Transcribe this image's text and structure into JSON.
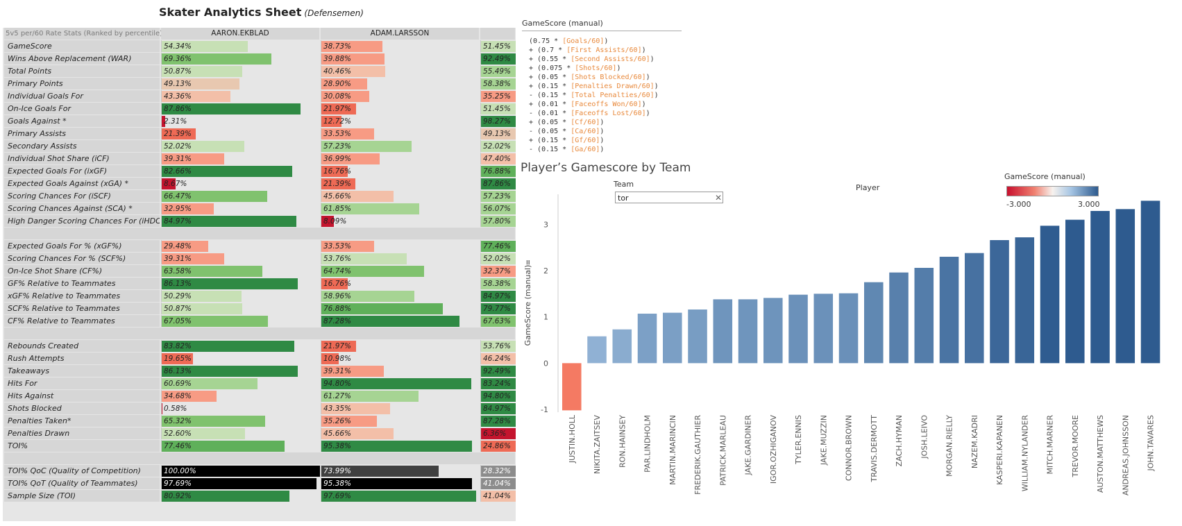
{
  "sheet": {
    "title": "Skater Analytics Sheet",
    "subtitle": "(Defensemen)"
  },
  "table": {
    "header_rate": "5v5 per/60 Rate Stats (Ranked by percentile)",
    "players": [
      "AARON.EKBLAD",
      "ADAM.LARSSON",
      ""
    ],
    "groups": [
      [
        {
          "label": "GameScore",
          "v": [
            "54.34%",
            "38.73%",
            "51.45%"
          ]
        },
        {
          "label": "Wins Above Replacement (WAR)",
          "v": [
            "69.36%",
            "39.88%",
            "92.49%"
          ]
        },
        {
          "label": "Total Points",
          "v": [
            "50.87%",
            "40.46%",
            "55.49%"
          ]
        },
        {
          "label": "Primary Points",
          "v": [
            "49.13%",
            "28.90%",
            "58.38%"
          ]
        },
        {
          "label": "Individual Goals For",
          "v": [
            "43.36%",
            "30.08%",
            "35.25%"
          ]
        },
        {
          "label": "On-Ice Goals For",
          "v": [
            "87.86%",
            "21.97%",
            "51.45%"
          ]
        },
        {
          "label": "Goals Against *",
          "v": [
            "2.31%",
            "12.72%",
            "98.27%"
          ]
        },
        {
          "label": "Primary Assists",
          "v": [
            "21.39%",
            "33.53%",
            "49.13%"
          ]
        },
        {
          "label": "Secondary Assists",
          "v": [
            "52.02%",
            "57.23%",
            "52.02%"
          ]
        },
        {
          "label": "Individual Shot Share (iCF)",
          "v": [
            "39.31%",
            "36.99%",
            "47.40%"
          ]
        },
        {
          "label": "Expected Goals For (ixGF)",
          "v": [
            "82.66%",
            "16.76%",
            "76.88%"
          ]
        },
        {
          "label": "Expected Goals Against (xGA) *",
          "v": [
            "8.67%",
            "21.39%",
            "87.86%"
          ]
        },
        {
          "label": "Scoring Chances For (iSCF)",
          "v": [
            "66.47%",
            "45.66%",
            "57.23%"
          ]
        },
        {
          "label": "Scoring Chances Against (SCA) *",
          "v": [
            "32.95%",
            "61.85%",
            "56.07%"
          ]
        },
        {
          "label": "High Danger Scoring Chances For (iHDCF)",
          "v": [
            "84.97%",
            "8.09%",
            "57.80%"
          ]
        }
      ],
      [
        {
          "label": "Expected Goals For % (xGF%)",
          "v": [
            "29.48%",
            "33.53%",
            "77.46%"
          ]
        },
        {
          "label": "Scoring Chances For % (SCF%)",
          "v": [
            "39.31%",
            "53.76%",
            "52.02%"
          ]
        },
        {
          "label": "On-Ice Shot Share (CF%)",
          "v": [
            "63.58%",
            "64.74%",
            "32.37%"
          ]
        },
        {
          "label": "GF% Relative to Teammates",
          "v": [
            "86.13%",
            "16.76%",
            "58.38%"
          ]
        },
        {
          "label": "xGF% Relative to Teammates",
          "v": [
            "50.29%",
            "58.96%",
            "84.97%"
          ]
        },
        {
          "label": "SCF% Relative to Teammates",
          "v": [
            "50.87%",
            "76.88%",
            "79.77%"
          ]
        },
        {
          "label": "CF% Relative to Teammates",
          "v": [
            "67.05%",
            "87.28%",
            "67.63%"
          ]
        }
      ],
      [
        {
          "label": "Rebounds Created",
          "v": [
            "83.82%",
            "21.97%",
            "53.76%"
          ]
        },
        {
          "label": "Rush Attempts",
          "v": [
            "19.65%",
            "10.98%",
            "46.24%"
          ]
        },
        {
          "label": "Takeaways",
          "v": [
            "86.13%",
            "39.31%",
            "92.49%"
          ]
        },
        {
          "label": "Hits For",
          "v": [
            "60.69%",
            "94.80%",
            "83.24%"
          ]
        },
        {
          "label": "Hits Against",
          "v": [
            "34.68%",
            "61.27%",
            "94.80%"
          ]
        },
        {
          "label": "Shots Blocked",
          "v": [
            "0.58%",
            "43.35%",
            "84.97%"
          ]
        },
        {
          "label": "Penalties Taken*",
          "v": [
            "65.32%",
            "35.26%",
            "87.28%"
          ]
        },
        {
          "label": "Penalties Drawn",
          "v": [
            "52.60%",
            "45.66%",
            "6.36%"
          ]
        },
        {
          "label": "TOI%",
          "v": [
            "77.46%",
            "95.38%",
            "24.86%"
          ]
        }
      ],
      [
        {
          "label": "TOI% QoC (Quality of Competition)",
          "v": [
            "100.00%",
            "73.99%",
            "28.32%"
          ],
          "dark": true
        },
        {
          "label": "TOI% QoT (Quality of Teammates)",
          "v": [
            "97.69%",
            "95.38%",
            "41.04%"
          ],
          "dark": true
        },
        {
          "label": "Sample Size (TOI)",
          "v": [
            "80.92%",
            "97.69%",
            "41.04%"
          ]
        }
      ]
    ]
  },
  "calc": {
    "header": "GameScore (manual)",
    "lines": [
      {
        "prefix": " (0.75 * ",
        "field": "[Goals/60]",
        "suffix": ")"
      },
      {
        "prefix": " + (0.7 * ",
        "field": "[First Assists/60]",
        "suffix": ")"
      },
      {
        "prefix": " + (0.55 * ",
        "field": "[Second Assists/60]",
        "suffix": ")"
      },
      {
        "prefix": " + (0.075 * ",
        "field": "[Shots/60]",
        "suffix": ")"
      },
      {
        "prefix": " + (0.05 * ",
        "field": "[Shots Blocked/60]",
        "suffix": ")"
      },
      {
        "prefix": " + (0.15 * ",
        "field": "[Penalties Drawn/60]",
        "suffix": ")"
      },
      {
        "prefix": " - (0.15 * ",
        "field": "[Total Penalties/60]",
        "suffix": ")"
      },
      {
        "prefix": " + (0.01 * ",
        "field": "[Faceoffs Won/60]",
        "suffix": ")"
      },
      {
        "prefix": " - (0.01 * ",
        "field": "[Faceoffs Lost/60]",
        "suffix": ")"
      },
      {
        "prefix": " + (0.05 * ",
        "field": "[Cf/60]",
        "suffix": ")"
      },
      {
        "prefix": " - (0.05 * ",
        "field": "[Ca/60]",
        "suffix": ")"
      },
      {
        "prefix": " + (0.15 * ",
        "field": "[Gf/60]",
        "suffix": ")"
      },
      {
        "prefix": " - (0.15 * ",
        "field": "[Ga/60]",
        "suffix": ")"
      }
    ]
  },
  "chart_panel": {
    "title": "Player’s Gamescore by Team",
    "team_label": "Team",
    "team_value": "tor",
    "player_label": "Player",
    "legend_title": "GameScore (manual)",
    "legend_min": "-3.000",
    "legend_max": "3.000"
  },
  "chart_data": {
    "type": "bar",
    "title": "Player’s Gamescore by Team",
    "xlabel": "Player",
    "ylabel": "GameScore (manual)",
    "ylim": [
      -1,
      3.5
    ],
    "yticks": [
      -1,
      0,
      1,
      2,
      3
    ],
    "grid": false,
    "color_scale": {
      "min": -3,
      "max": 3,
      "negative": "#f47a63",
      "positive": "#2e5b8f"
    },
    "categories": [
      "JUSTIN.HOLL",
      "NIKITA.ZAITSEV",
      "RON.HAINSEY",
      "PAR.LINDHOLM",
      "MARTIN.MARINCIN",
      "FREDERIK.GAUTHIER",
      "PATRICK.MARLEAU",
      "JAKE.GARDINER",
      "IGOR.OZHIGANOV",
      "TYLER.ENNIS",
      "JAKE.MUZZIN",
      "CONNOR.BROWN",
      "TRAVIS.DERMOTT",
      "ZACH.HYMAN",
      "JOSH.LEIVO",
      "MORGAN.RIELLY",
      "NAZEM.KADRI",
      "KASPERI.KAPANEN",
      "WILLIAM.NYLANDER",
      "MITCH.MARNER",
      "TREVOR.MOORE",
      "AUSTON.MATTHEWS",
      "ANDREAS.JOHNSSON",
      "JOHN.TAVARES"
    ],
    "values": [
      -1.02,
      0.58,
      0.73,
      1.07,
      1.09,
      1.16,
      1.38,
      1.38,
      1.41,
      1.48,
      1.5,
      1.51,
      1.75,
      1.96,
      2.06,
      2.3,
      2.38,
      2.66,
      2.72,
      2.97,
      3.1,
      3.29,
      3.33,
      3.51
    ]
  }
}
